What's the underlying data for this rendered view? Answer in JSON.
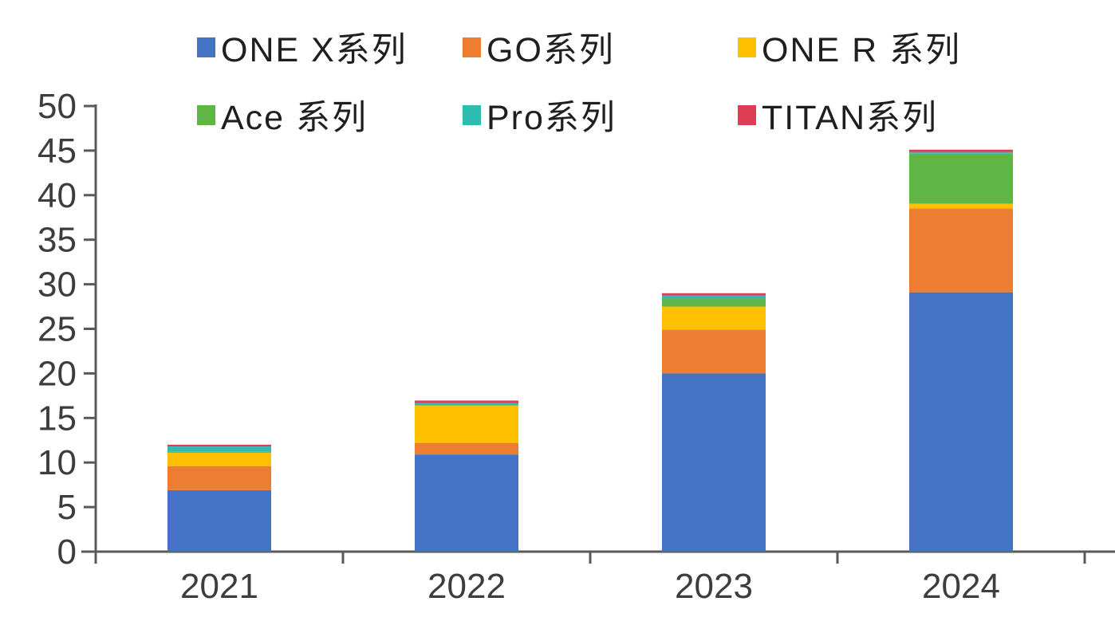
{
  "chart_data": {
    "type": "bar",
    "stacked": true,
    "title": "",
    "xlabel": "",
    "ylabel": "",
    "categories": [
      "2021",
      "2022",
      "2023",
      "2024"
    ],
    "series": [
      {
        "name": "ONE X系列",
        "color": "#4472C4",
        "values": [
          6.9,
          10.9,
          20.0,
          29.1
        ]
      },
      {
        "name": "GO系列",
        "color": "#ED7D31",
        "values": [
          2.7,
          1.3,
          4.9,
          9.4
        ]
      },
      {
        "name": "ONE R 系列",
        "color": "#FFC000",
        "values": [
          1.5,
          4.2,
          2.6,
          0.55
        ]
      },
      {
        "name": "Ace 系列",
        "color": "#5FB546",
        "values": [
          0.1,
          0.15,
          0.9,
          5.6
        ]
      },
      {
        "name": "Pro系列",
        "color": "#2DBDB0",
        "values": [
          0.6,
          0.1,
          0.35,
          0.2
        ]
      },
      {
        "name": "TITAN系列",
        "color": "#DD3E55",
        "values": [
          0.2,
          0.3,
          0.25,
          0.25
        ]
      }
    ],
    "ylim": [
      0,
      50
    ],
    "ytick_step": 5,
    "y_tick_labels": [
      "0",
      "5",
      "10",
      "15",
      "20",
      "25",
      "30",
      "35",
      "40",
      "45",
      "50"
    ],
    "grid": false,
    "legend_position": "top",
    "legend_rows": [
      [
        "ONE X系列",
        "GO系列",
        "ONE R 系列"
      ],
      [
        "Ace 系列",
        "Pro系列",
        "TITAN系列"
      ]
    ]
  },
  "style": {
    "axis_color": "#595959",
    "tick_label_color": "#3d3d3d",
    "background": "#ffffff"
  }
}
